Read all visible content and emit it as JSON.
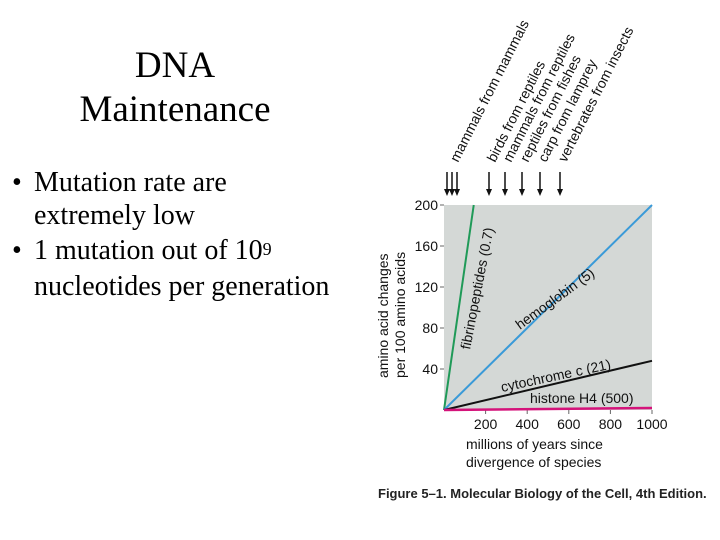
{
  "slide": {
    "title_line1": "DNA",
    "title_line2": "Maintenance",
    "bullets": [
      {
        "text": "Mutation rate are extremely low"
      },
      {
        "text": "1 mutation out of 10",
        "sup": "9",
        "rest": " nucleotides per generation"
      }
    ],
    "bullet_glyph": "•"
  },
  "figure_caption": "Figure 5–1. Molecular Biology of the Cell, 4th Edition.",
  "chart_data": {
    "type": "line",
    "xlabel_line1": "millions of years since",
    "xlabel_line2": "divergence of species",
    "ylabel_line1": "amino acid changes",
    "ylabel_line2": "per 100 amino acids",
    "x_ticks": [
      "200",
      "400",
      "600",
      "800",
      "1000"
    ],
    "y_ticks": [
      "40",
      "80",
      "120",
      "160",
      "200"
    ],
    "xlim": [
      0,
      1000
    ],
    "ylim": [
      0,
      200
    ],
    "plot_background": "#d4d8d6",
    "series": [
      {
        "name": "fibrinopeptides (0.7)",
        "color": "#1f9a58",
        "x": [
          0,
          143
        ],
        "y": [
          0,
          200
        ]
      },
      {
        "name": "hemoglobin (5)",
        "color": "#3a9ad8",
        "x": [
          0,
          1000
        ],
        "y": [
          0,
          200
        ]
      },
      {
        "name": "cytochrome c (21)",
        "color": "#111111",
        "x": [
          0,
          1000
        ],
        "y": [
          0,
          48
        ]
      },
      {
        "name": "histone H4 (500)",
        "color": "#d4137a",
        "x": [
          0,
          1000
        ],
        "y": [
          0,
          2
        ]
      }
    ],
    "divergences": [
      {
        "label": "mammals from mammals",
        "x": 20
      },
      {
        "label": "birds from reptiles",
        "x": 235
      },
      {
        "label": "mammals from reptiles",
        "x": 300
      },
      {
        "label": "reptiles from fishes",
        "x": 370
      },
      {
        "label": "carp from lamprey",
        "x": 450
      },
      {
        "label": "vertebrates from insects",
        "x": 590
      }
    ]
  }
}
